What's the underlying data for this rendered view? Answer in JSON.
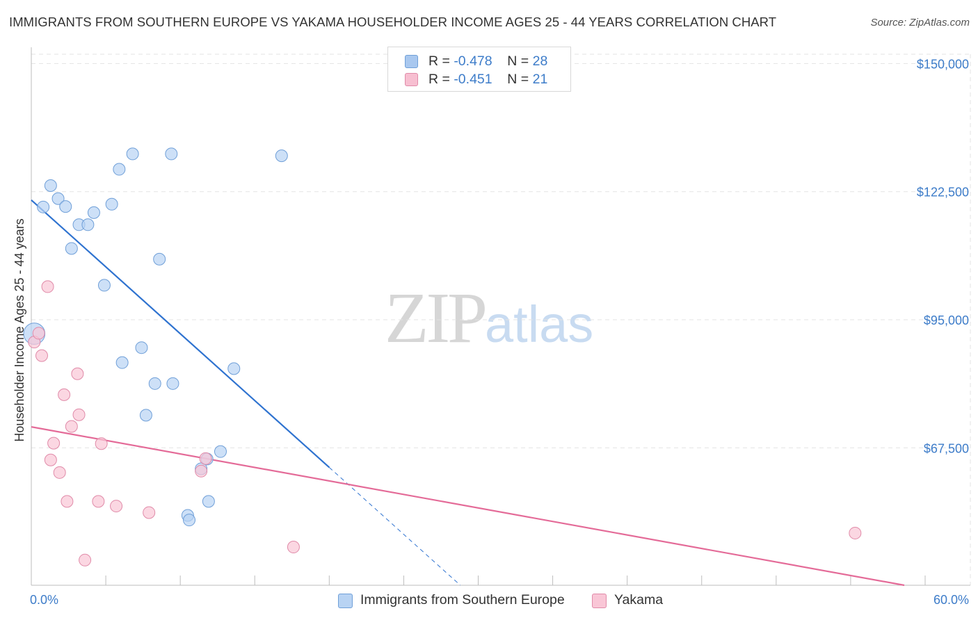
{
  "title": "IMMIGRANTS FROM SOUTHERN EUROPE VS YAKAMA HOUSEHOLDER INCOME AGES 25 - 44 YEARS CORRELATION CHART",
  "source": "Source: ZipAtlas.com",
  "watermark": {
    "zip": "ZIP",
    "atlas": "atlas"
  },
  "legend": {
    "rows": [
      {
        "r_label": "R = ",
        "r_value": "-0.478",
        "n_label": "N = ",
        "n_value": "28",
        "color": "#a9c8ef",
        "border": "#6f9fd8"
      },
      {
        "r_label": "R = ",
        "r_value": "-0.451",
        "n_label": "N = ",
        "n_value": "21",
        "color": "#f7bfd1",
        "border": "#e08aa8"
      }
    ]
  },
  "bottom_legend": [
    {
      "label": "Immigrants from Southern Europe",
      "color": "#b8d3f3",
      "border": "#6f9fd8"
    },
    {
      "label": "Yakama",
      "color": "#f9c6d6",
      "border": "#e08aa8"
    }
  ],
  "chart_data": {
    "type": "scatter",
    "title": "IMMIGRANTS FROM SOUTHERN EUROPE VS YAKAMA HOUSEHOLDER INCOME AGES 25 - 44 YEARS CORRELATION CHART",
    "xlabel": "",
    "ylabel": "Householder Income Ages 25 - 44 years",
    "xlim": [
      0,
      60
    ],
    "ylim": [
      38000,
      152000
    ],
    "x_tick_labels": [
      "0.0%",
      "60.0%"
    ],
    "y_ticks": [
      150000,
      122500,
      95000,
      67500
    ],
    "y_tick_labels": [
      "$150,000",
      "$122,500",
      "$95,000",
      "$67,500"
    ],
    "grid": true,
    "colors": {
      "blue": "#3d7cc9",
      "blue_line": "#2f73d0",
      "pink_line": "#e46b98",
      "grid": "#e3e3e3",
      "axis": "#bdbdbd"
    },
    "series": [
      {
        "name": "Immigrants from Southern Europe",
        "color": "#b8d3f3",
        "stroke": "#6f9fd8",
        "points": [
          [
            0.2,
            92000,
            1.8
          ],
          [
            0.8,
            119200,
            1
          ],
          [
            1.3,
            123800,
            1
          ],
          [
            1.8,
            121000,
            1
          ],
          [
            2.3,
            119300,
            1
          ],
          [
            2.7,
            110300,
            1
          ],
          [
            3.2,
            115400,
            1
          ],
          [
            3.8,
            115400,
            1
          ],
          [
            4.2,
            118000,
            1
          ],
          [
            4.9,
            102400,
            1
          ],
          [
            5.4,
            119800,
            1
          ],
          [
            5.9,
            127300,
            1
          ],
          [
            6.1,
            85800,
            1
          ],
          [
            6.8,
            130600,
            1
          ],
          [
            7.4,
            89000,
            1
          ],
          [
            7.7,
            74500,
            1
          ],
          [
            8.3,
            81300,
            1
          ],
          [
            8.6,
            108000,
            1
          ],
          [
            9.4,
            130600,
            1
          ],
          [
            9.5,
            81300,
            1
          ],
          [
            10.5,
            53000,
            1
          ],
          [
            10.6,
            52000,
            1
          ],
          [
            11.4,
            63000,
            1
          ],
          [
            11.8,
            65100,
            1
          ],
          [
            11.9,
            56000,
            1
          ],
          [
            12.7,
            66700,
            1
          ],
          [
            13.6,
            84500,
            1
          ],
          [
            16.8,
            130200,
            1
          ]
        ],
        "trend": {
          "x0": 0,
          "y0": 120700,
          "x1": 20,
          "y1": 63300,
          "dash_x1": 28.8,
          "dash_y1": 38000
        }
      },
      {
        "name": "Yakama",
        "color": "#f9c6d6",
        "stroke": "#e08aa8",
        "points": [
          [
            0.2,
            90200
          ],
          [
            0.5,
            92100
          ],
          [
            0.7,
            87300
          ],
          [
            1.1,
            102100
          ],
          [
            1.3,
            64900
          ],
          [
            1.5,
            68500
          ],
          [
            1.9,
            62200
          ],
          [
            2.2,
            78900
          ],
          [
            2.4,
            56000
          ],
          [
            2.7,
            72100
          ],
          [
            3.1,
            83400
          ],
          [
            3.2,
            74600
          ],
          [
            3.6,
            43400
          ],
          [
            4.5,
            56000
          ],
          [
            4.7,
            68400
          ],
          [
            5.7,
            55000
          ],
          [
            7.9,
            53600
          ],
          [
            11.4,
            62500
          ],
          [
            11.7,
            65200
          ],
          [
            17.6,
            46200
          ],
          [
            55.3,
            49200
          ]
        ],
        "trend": {
          "x0": 0,
          "y0": 72000,
          "x1": 58.6,
          "y1": 38000
        }
      }
    ]
  }
}
